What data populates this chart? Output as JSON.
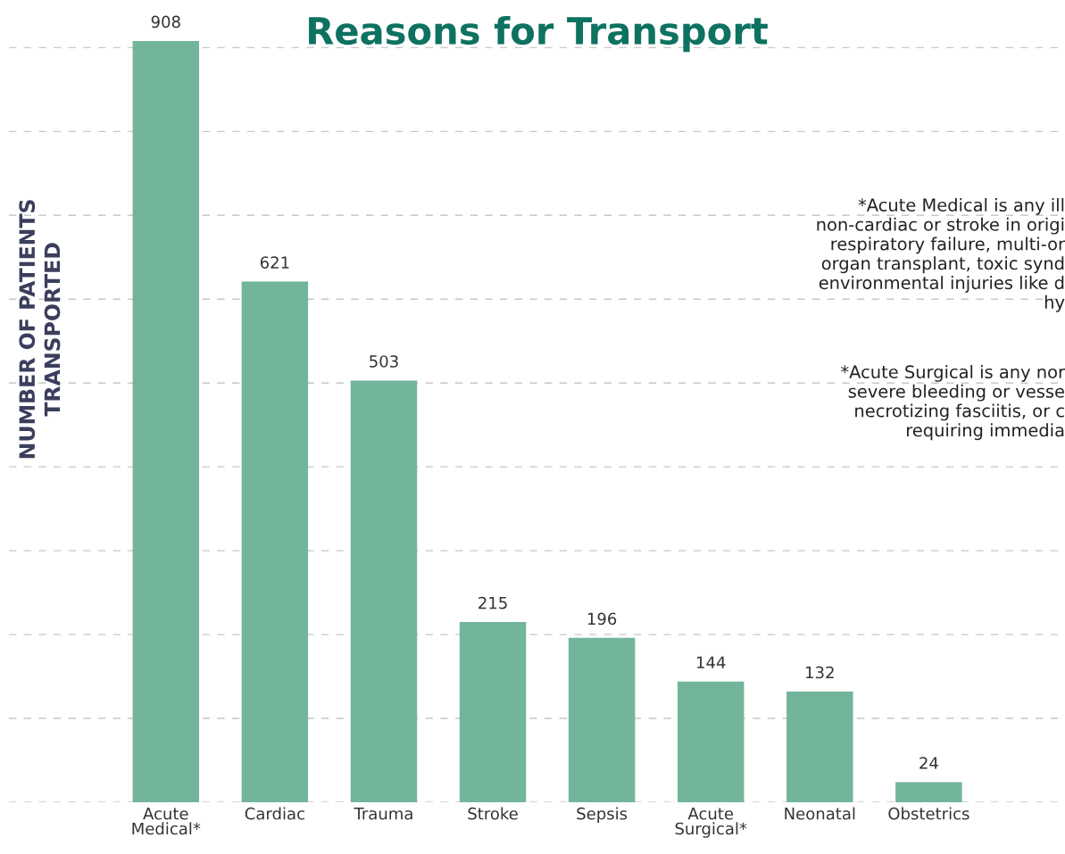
{
  "chart_data": {
    "type": "bar",
    "title": "Reasons for Transport",
    "ylabel": "NUMBER OF PATIENTS\nTRANSPORTED",
    "categories": [
      "Acute\nMedical*",
      "Cardiac",
      "Trauma",
      "Stroke",
      "Sepsis",
      "Acute\nSurgical*",
      "Neonatal",
      "Obstetrics"
    ],
    "values": [
      908,
      621,
      503,
      215,
      196,
      144,
      132,
      24
    ],
    "color": "#72b59a",
    "data_labels": true,
    "ylim": [
      0,
      910
    ],
    "yticks": [
      {
        "value": 0,
        "label": null
      },
      {
        "value": 100,
        "label": null
      },
      {
        "value": 200,
        "label": null
      },
      {
        "value": 300,
        "label": null
      },
      {
        "value": 400,
        "label": null
      },
      {
        "value": 500,
        "label": null
      },
      {
        "value": 600,
        "label": null
      },
      {
        "value": 700,
        "label": null
      },
      {
        "value": 800,
        "label": null
      },
      {
        "value": 900,
        "label": null
      }
    ],
    "grid": "y",
    "tick_labels": "x",
    "annotations": [
      "*Acute Medical is any ill\nnon-cardiac or stroke in origi\nrespiratory failure, multi-or\norgan transplant, toxic synd\nenvironmental injuries like d\nhy",
      "*Acute Surgical is any nor\nsevere bleeding or vesse\nnecrotizing fasciitis, or c\nrequiring immedia"
    ]
  }
}
